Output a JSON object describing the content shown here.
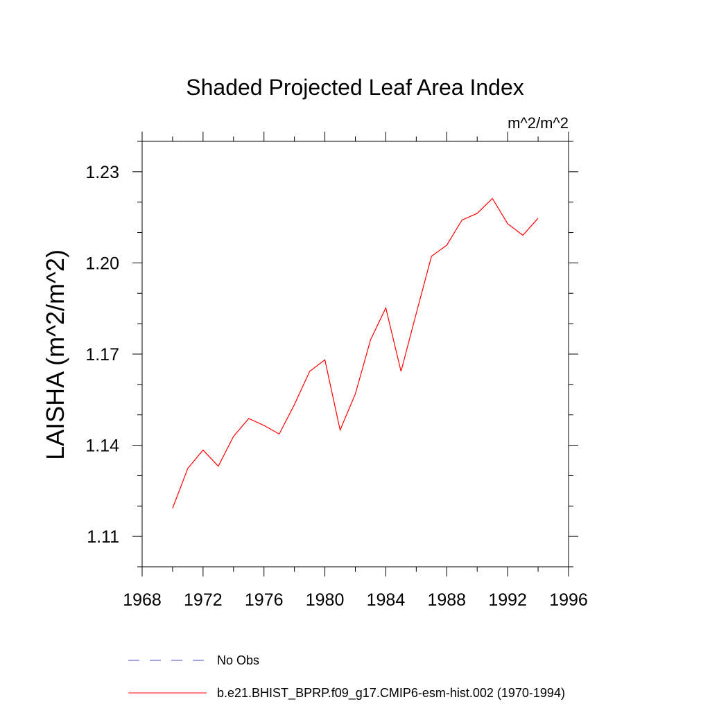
{
  "chart_data": {
    "type": "line",
    "title": "Shaded Projected Leaf Area Index",
    "units": "m^2/m^2",
    "ylabel": "LAISHA  (m^2/m^2)",
    "xlabel": "",
    "xlim": [
      1968,
      1996
    ],
    "ylim": [
      1.1,
      1.24
    ],
    "x_ticks": [
      1968,
      1972,
      1976,
      1980,
      1984,
      1988,
      1992,
      1996
    ],
    "x_tick_labels": [
      "1968",
      "1972",
      "1976",
      "1980",
      "1984",
      "1988",
      "1992",
      "1996"
    ],
    "y_ticks": [
      1.11,
      1.14,
      1.17,
      1.2,
      1.23
    ],
    "y_tick_labels": [
      "1.11",
      "1.14",
      "1.17",
      "1.20",
      "1.23"
    ],
    "grid": false,
    "legend_position": "bottom",
    "series": [
      {
        "name": "b.e21.BHIST_BPRP.f09_g17.CMIP6-esm-hist.002 (1970-1994)",
        "color": "#ff0000",
        "dash": "solid",
        "x": [
          1970,
          1971,
          1972,
          1973,
          1974,
          1975,
          1976,
          1977,
          1978,
          1979,
          1980,
          1981,
          1982,
          1983,
          1984,
          1985,
          1986,
          1987,
          1988,
          1989,
          1990,
          1991,
          1992,
          1993,
          1994
        ],
        "y": [
          1.1193,
          1.1324,
          1.1384,
          1.1331,
          1.1429,
          1.1488,
          1.1465,
          1.1437,
          1.1534,
          1.1643,
          1.1681,
          1.145,
          1.1569,
          1.1747,
          1.1852,
          1.1643,
          1.1834,
          1.2022,
          1.2058,
          1.2141,
          1.2163,
          1.2212,
          1.2129,
          1.2091,
          1.2147
        ]
      }
    ],
    "legend": [
      {
        "label": "No Obs",
        "color": "#4b4bcc",
        "dash": "dashed"
      },
      {
        "label": "b.e21.BHIST_BPRP.f09_g17.CMIP6-esm-hist.002 (1970-1994)",
        "color": "#ff0000",
        "dash": "solid"
      }
    ]
  }
}
